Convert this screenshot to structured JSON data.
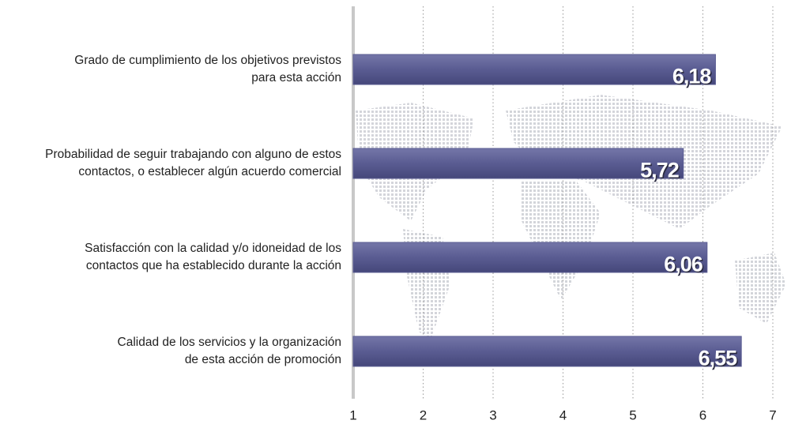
{
  "chart_data": {
    "type": "barh",
    "categories": [
      [
        "Grado de cumplimiento de los objetivos previstos",
        "para esta acción"
      ],
      [
        "Probabilidad de seguir trabajando con alguno de estos",
        "contactos, o establecer algún acuerdo comercial"
      ],
      [
        "Satisfacción con la calidad y/o idoneidad de los",
        "contactos que ha establecido durante la acción"
      ],
      [
        "Calidad de los servicios y la organización",
        "de esta acción de promoción"
      ]
    ],
    "values": [
      6.18,
      5.72,
      6.06,
      6.55
    ],
    "value_labels": [
      "6,18",
      "5,72",
      "6,06",
      "6,55"
    ],
    "color": "#5a5c92",
    "xlim": [
      1,
      7
    ],
    "xticks": [
      1,
      2,
      3,
      4,
      5,
      6,
      7
    ],
    "grid": true
  }
}
